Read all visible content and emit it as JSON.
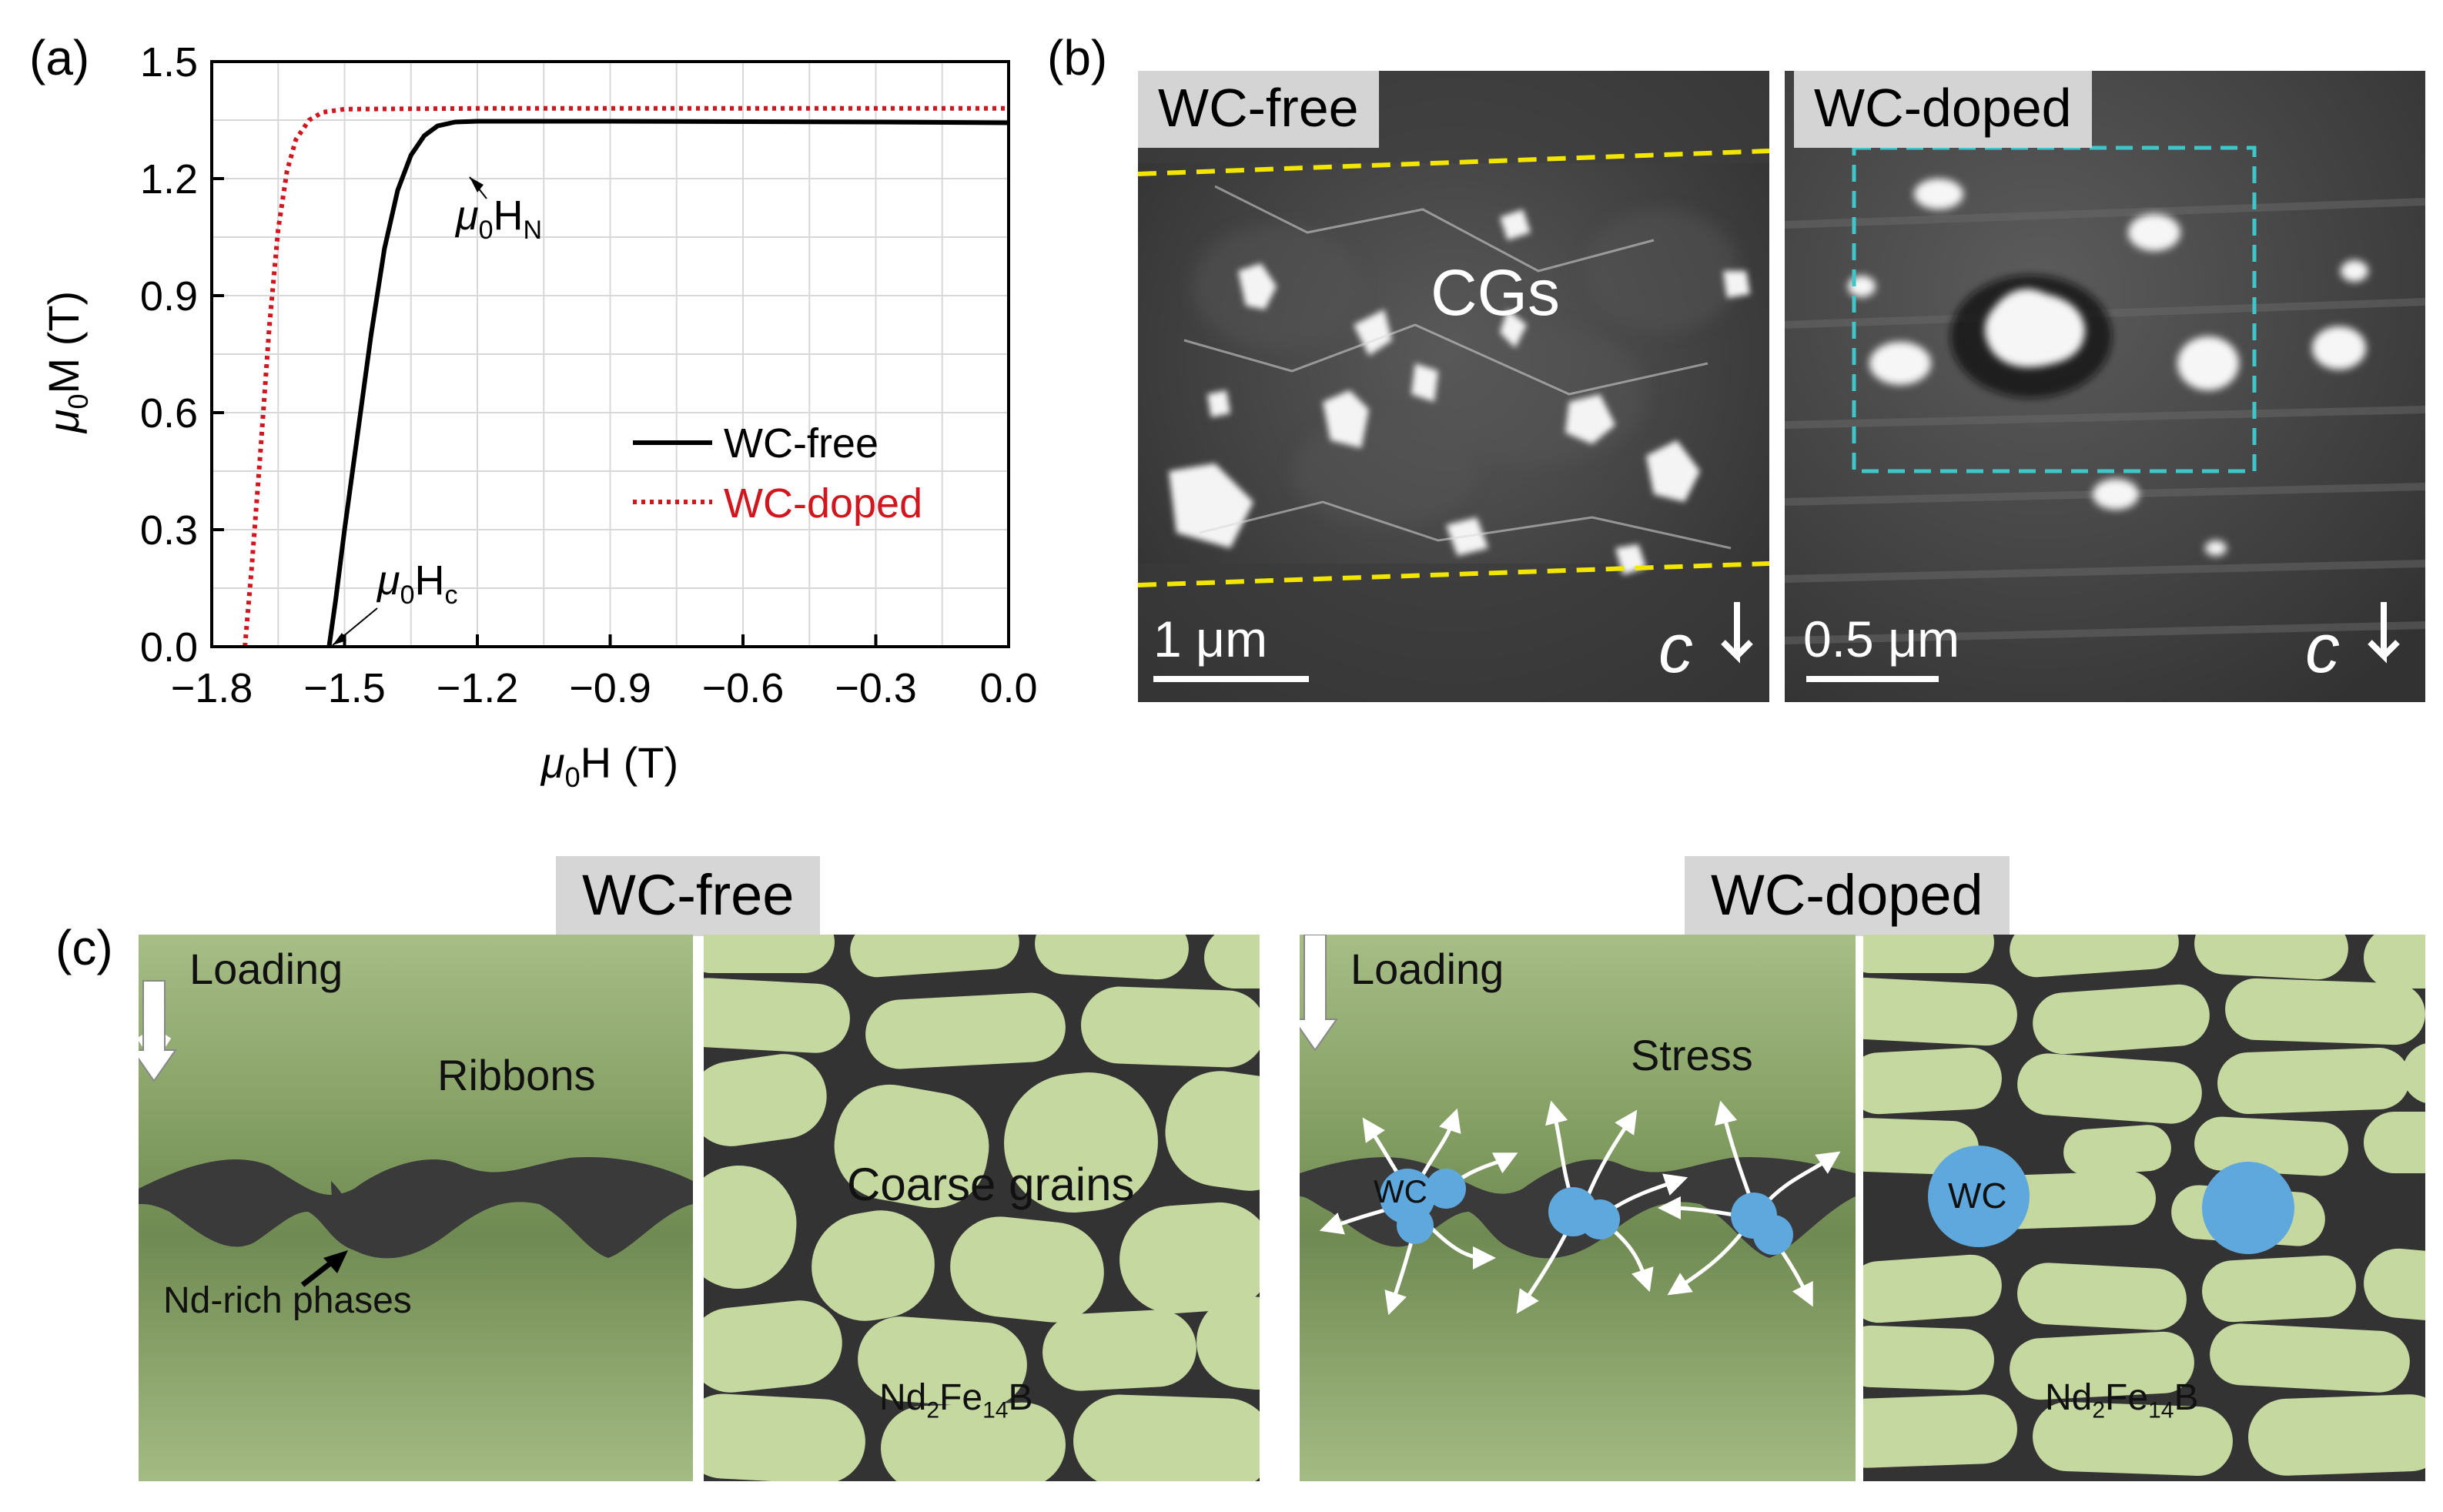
{
  "panel_a": {
    "label": "(a)",
    "chart_data": {
      "type": "line",
      "xlabel_symbol": "μ",
      "xlabel_sub": "0",
      "xlabel_rest": "H (T)",
      "ylabel_symbol": "μ",
      "ylabel_sub": "0",
      "ylabel_rest": "M (T)",
      "xlim": [
        -1.8,
        0.0
      ],
      "ylim": [
        0.0,
        1.5
      ],
      "x_ticks": [
        "−1.8",
        "−1.5",
        "−1.2",
        "−0.9",
        "−0.6",
        "−0.3",
        "0.0"
      ],
      "x_tick_values": [
        -1.8,
        -1.5,
        -1.2,
        -0.9,
        -0.6,
        -0.3,
        0.0
      ],
      "y_ticks": [
        "0.0",
        "0.3",
        "0.6",
        "0.9",
        "1.2",
        "1.5"
      ],
      "y_tick_values": [
        0.0,
        0.3,
        0.6,
        0.9,
        1.2,
        1.5
      ],
      "grid": true,
      "legend": "center-right",
      "series": [
        {
          "name": "WC-free",
          "color": "#000000",
          "style": "solid",
          "points": [
            [
              -1.535,
              0.0
            ],
            [
              -1.52,
              0.12
            ],
            [
              -1.5,
              0.3
            ],
            [
              -1.47,
              0.55
            ],
            [
              -1.44,
              0.8
            ],
            [
              -1.41,
              1.02
            ],
            [
              -1.38,
              1.17
            ],
            [
              -1.35,
              1.26
            ],
            [
              -1.32,
              1.31
            ],
            [
              -1.29,
              1.335
            ],
            [
              -1.25,
              1.345
            ],
            [
              -1.2,
              1.347
            ],
            [
              -0.9,
              1.347
            ],
            [
              -0.6,
              1.346
            ],
            [
              -0.3,
              1.345
            ],
            [
              0.0,
              1.343
            ]
          ]
        },
        {
          "name": "WC-doped",
          "color": "#d0161e",
          "style": "dotted",
          "points": [
            [
              -1.725,
              0.0
            ],
            [
              -1.71,
              0.2
            ],
            [
              -1.69,
              0.5
            ],
            [
              -1.67,
              0.82
            ],
            [
              -1.65,
              1.07
            ],
            [
              -1.63,
              1.22
            ],
            [
              -1.61,
              1.3
            ],
            [
              -1.58,
              1.35
            ],
            [
              -1.55,
              1.37
            ],
            [
              -1.5,
              1.378
            ],
            [
              -1.2,
              1.38
            ],
            [
              -0.9,
              1.38
            ],
            [
              -0.6,
              1.38
            ],
            [
              -0.3,
              1.38
            ],
            [
              0.0,
              1.38
            ]
          ]
        }
      ],
      "annotations": [
        {
          "symbol": "μ",
          "sub": "0",
          "rest": "H",
          "rest_sub": "N",
          "target": [
            -1.23,
            1.34
          ]
        },
        {
          "symbol": "μ",
          "sub": "0",
          "rest": "H",
          "rest_sub": "c",
          "target": [
            -1.535,
            0.0
          ]
        }
      ]
    }
  },
  "panel_b": {
    "label": "(b)",
    "left": {
      "title": "WC-free",
      "region_label": "CGs",
      "scale_label": "1 μm",
      "axis_label": "c"
    },
    "right": {
      "title": "WC-doped",
      "scale_label": "0.5 μm",
      "axis_label": "c"
    }
  },
  "panel_c": {
    "label": "(c)",
    "left": {
      "header": "WC-free",
      "loading": "Loading",
      "ribbons": "Ribbons",
      "nd_rich": "Nd-rich phases",
      "coarse": "Coarse grains",
      "phase_main": "Nd",
      "phase_sub1": "2",
      "phase_mid": "Fe",
      "phase_sub2": "14",
      "phase_end": "B"
    },
    "right": {
      "header": "WC-doped",
      "loading": "Loading",
      "stress": "Stress",
      "wc": "WC",
      "wc2": "WC",
      "phase_main": "Nd",
      "phase_sub1": "2",
      "phase_mid": "Fe",
      "phase_sub2": "14",
      "phase_end": "B"
    }
  },
  "colors": {
    "grain": "#c4d8a0",
    "matrix": "#3c3c3c",
    "wc": "#5fa8dd",
    "ribbon_top": "#8aa36a",
    "ribbon_bottom": "#a8bf88"
  }
}
